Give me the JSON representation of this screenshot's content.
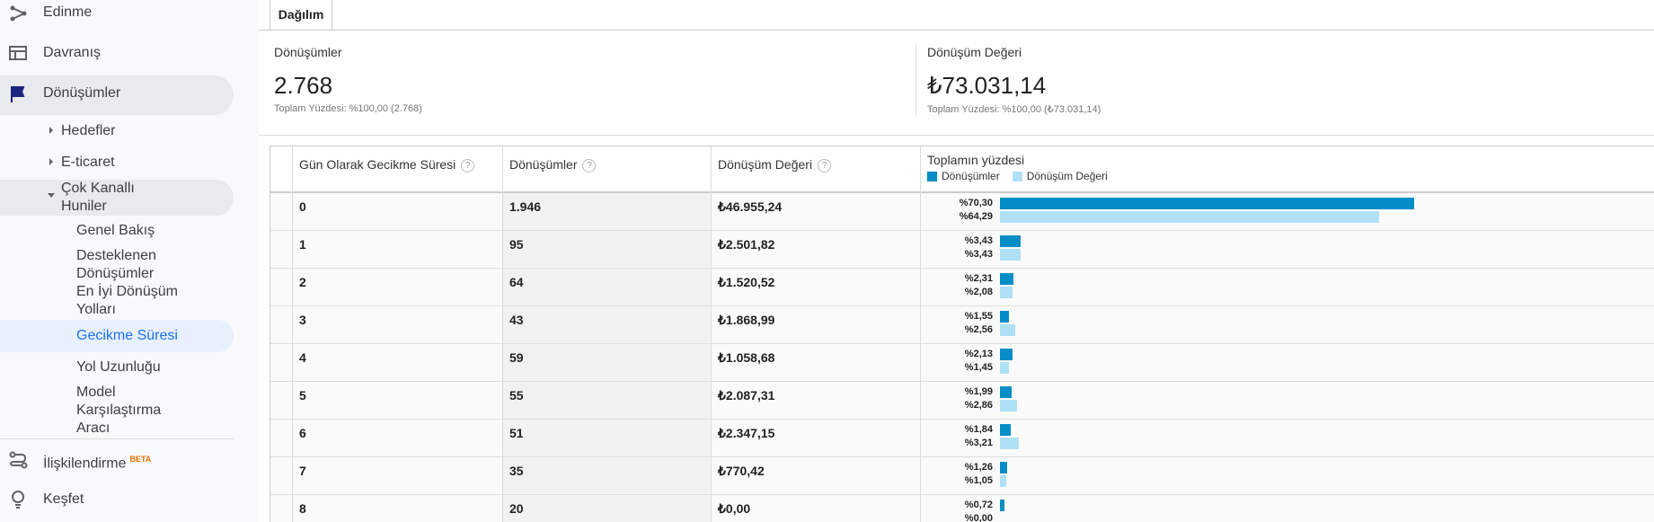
{
  "sidebar": {
    "items": [
      "Edinme",
      "Davranış",
      "Dönüşümler",
      "Hedefler",
      "E-ticaret",
      "Çok Kanallı Huniler",
      "Genel Bakış",
      "Desteklenen Dönüşümler",
      "En İyi Dönüşüm Yolları",
      "Gecikme Süresi",
      "Yol Uzunluğu",
      "Model Karşılaştırma Aracı",
      "İlişkilendirme",
      "Keşfet"
    ],
    "badge": "BETA"
  },
  "tab": "Dağılım",
  "summary": [
    {
      "label": "Dönüşümler",
      "value": "2.768",
      "subtitle": "Toplam Yüzdesi: %100,00 (2.768)"
    },
    {
      "label": "Dönüşüm Değeri",
      "value": "₺73.031,14",
      "subtitle": "Toplam Yüzdesi: %100,00 (₺73.031,14)"
    }
  ],
  "table": {
    "headers": [
      "Gün Olarak Gecikme Süresi",
      "Dönüşümler",
      "Dönüşüm Değeri",
      "Toplamın yüzdesi"
    ],
    "legend": [
      {
        "name": "Dönüşümler",
        "color": "#058dc7"
      },
      {
        "name": "Dönüşüm Değeri",
        "color": "#aee1f5"
      }
    ],
    "rows": [
      {
        "cells": [
          "0",
          "1.946",
          "₺46.955,24"
        ],
        "share": [
          70.3,
          64.29
        ],
        "share_labels": [
          "%70,30",
          "%64,29"
        ]
      },
      {
        "cells": [
          "1",
          "95",
          "₺2.501,82"
        ],
        "share": [
          3.43,
          3.43
        ],
        "share_labels": [
          "%3,43",
          "%3,43"
        ]
      },
      {
        "cells": [
          "2",
          "64",
          "₺1.520,52"
        ],
        "share": [
          2.31,
          2.08
        ],
        "share_labels": [
          "%2,31",
          "%2,08"
        ]
      },
      {
        "cells": [
          "3",
          "43",
          "₺1.868,99"
        ],
        "share": [
          1.55,
          2.56
        ],
        "share_labels": [
          "%1,55",
          "%2,56"
        ]
      },
      {
        "cells": [
          "4",
          "59",
          "₺1.058,68"
        ],
        "share": [
          2.13,
          1.45
        ],
        "share_labels": [
          "%2,13",
          "%1,45"
        ]
      },
      {
        "cells": [
          "5",
          "55",
          "₺2.087,31"
        ],
        "share": [
          1.99,
          2.86
        ],
        "share_labels": [
          "%1,99",
          "%2,86"
        ]
      },
      {
        "cells": [
          "6",
          "51",
          "₺2.347,15"
        ],
        "share": [
          1.84,
          3.21
        ],
        "share_labels": [
          "%1,84",
          "%3,21"
        ]
      },
      {
        "cells": [
          "7",
          "35",
          "₺770,42"
        ],
        "share": [
          1.26,
          1.05
        ],
        "share_labels": [
          "%1,26",
          "%1,05"
        ]
      },
      {
        "cells": [
          "8",
          "20",
          "₺0,00"
        ],
        "share": [
          0.72,
          0.0
        ],
        "share_labels": [
          "%0,72",
          "%0,00"
        ]
      }
    ]
  }
}
